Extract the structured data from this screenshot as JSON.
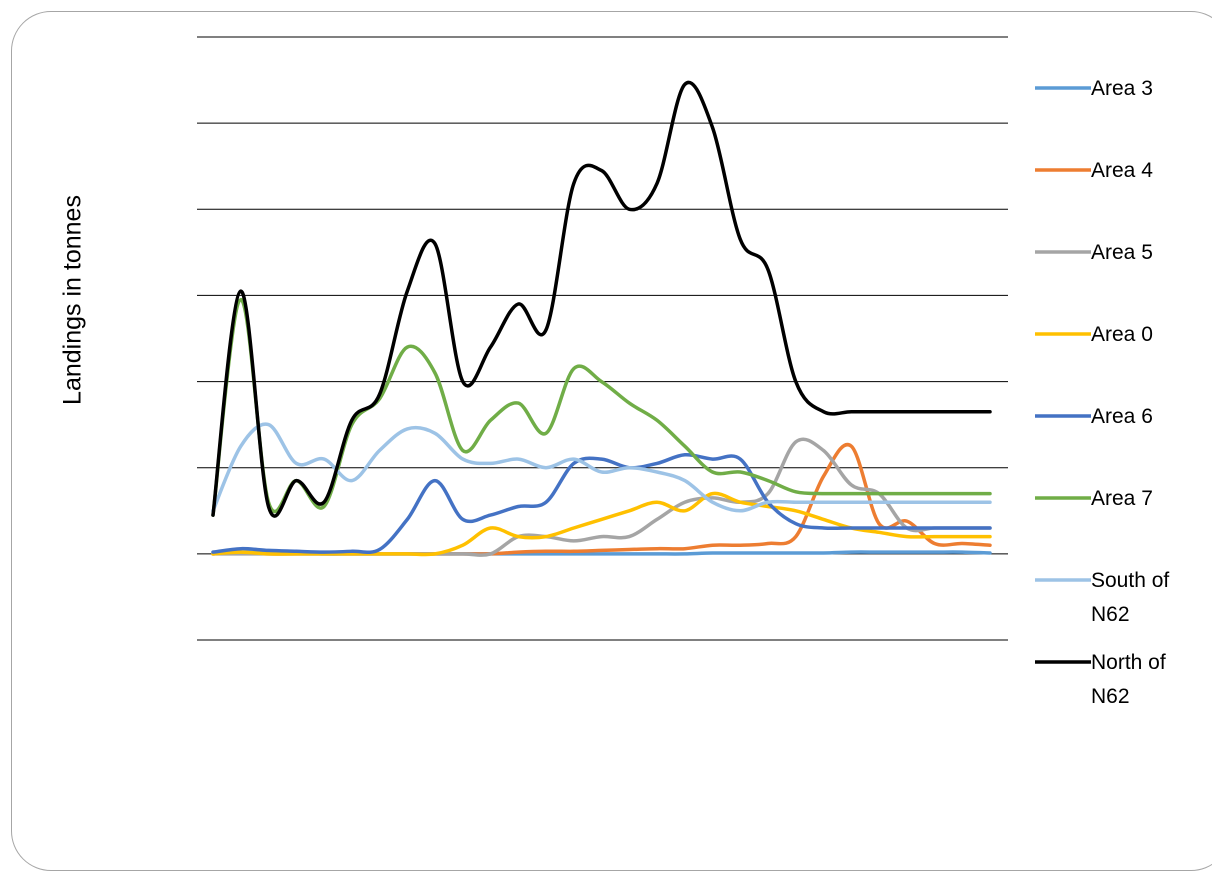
{
  "chart_data": {
    "type": "line",
    "title": "",
    "xlabel": "",
    "ylabel": "Landings in tonnes",
    "ylim": [
      -1,
      6
    ],
    "gridlines": "horizontal",
    "tick_labels_shown": false,
    "legend_position": "right",
    "series": [
      {
        "name": "Area 3",
        "color": "#5b9bd5",
        "values": [
          0.01,
          0.02,
          0.01,
          0.01,
          0.0,
          0.0,
          0.0,
          0.0,
          0.0,
          0.0,
          0.0,
          0.0,
          0.0,
          0.0,
          0.0,
          0.0,
          0.0,
          0.0,
          0.01,
          0.01,
          0.01,
          0.01,
          0.01,
          0.02,
          0.02,
          0.02,
          0.02,
          0.02,
          0.01
        ]
      },
      {
        "name": "Area 4",
        "color": "#ed7d31",
        "values": [
          0.0,
          0.01,
          0.0,
          0.0,
          0.0,
          0.0,
          0.0,
          0.0,
          0.0,
          0.0,
          0.0,
          0.02,
          0.03,
          0.03,
          0.04,
          0.05,
          0.06,
          0.06,
          0.1,
          0.1,
          0.12,
          0.2,
          0.9,
          1.25,
          0.35,
          0.38,
          0.12,
          0.12,
          0.1
        ]
      },
      {
        "name": "Area 5",
        "color": "#a5a5a5",
        "values": [
          0.0,
          0.0,
          0.0,
          0.0,
          0.0,
          0.0,
          0.0,
          0.0,
          0.0,
          0.0,
          0.0,
          0.2,
          0.2,
          0.15,
          0.2,
          0.2,
          0.4,
          0.6,
          0.65,
          0.6,
          0.7,
          1.3,
          1.2,
          0.8,
          0.7,
          0.3,
          0.3,
          0.3,
          0.3
        ]
      },
      {
        "name": "Area 0",
        "color": "#ffc000",
        "values": [
          0.0,
          0.02,
          0.0,
          0.0,
          0.0,
          0.0,
          0.0,
          0.0,
          0.0,
          0.1,
          0.3,
          0.2,
          0.2,
          0.3,
          0.4,
          0.5,
          0.6,
          0.5,
          0.7,
          0.6,
          0.55,
          0.5,
          0.4,
          0.3,
          0.25,
          0.2,
          0.2,
          0.2,
          0.2
        ]
      },
      {
        "name": "Area 6",
        "color": "#4472c4",
        "values": [
          0.02,
          0.06,
          0.04,
          0.03,
          0.02,
          0.03,
          0.05,
          0.4,
          0.85,
          0.4,
          0.45,
          0.55,
          0.6,
          1.05,
          1.1,
          1.0,
          1.05,
          1.15,
          1.1,
          1.1,
          0.6,
          0.35,
          0.3,
          0.3,
          0.3,
          0.3,
          0.3,
          0.3,
          0.3
        ]
      },
      {
        "name": "Area 7",
        "color": "#70ad47",
        "values": [
          0.45,
          2.95,
          0.6,
          0.85,
          0.55,
          1.5,
          1.8,
          2.4,
          2.1,
          1.2,
          1.55,
          1.75,
          1.4,
          2.15,
          2.0,
          1.75,
          1.55,
          1.25,
          0.95,
          0.95,
          0.85,
          0.72,
          0.7,
          0.7,
          0.7,
          0.7,
          0.7,
          0.7,
          0.7
        ]
      },
      {
        "name": "South of N62",
        "color": "#9dc3e6",
        "values": [
          0.5,
          1.25,
          1.5,
          1.05,
          1.1,
          0.85,
          1.2,
          1.45,
          1.4,
          1.1,
          1.05,
          1.1,
          1.0,
          1.1,
          0.95,
          1.0,
          0.95,
          0.85,
          0.6,
          0.5,
          0.6,
          0.6,
          0.6,
          0.6,
          0.6,
          0.6,
          0.6,
          0.6,
          0.6
        ]
      },
      {
        "name": "North of N62",
        "color": "#000000",
        "values": [
          0.45,
          3.05,
          0.55,
          0.85,
          0.6,
          1.55,
          1.85,
          3.05,
          3.6,
          2.0,
          2.4,
          2.9,
          2.6,
          4.3,
          4.45,
          4.0,
          4.3,
          5.45,
          4.95,
          3.65,
          3.3,
          2.0,
          1.65,
          1.65,
          1.65,
          1.65,
          1.65,
          1.65,
          1.65
        ]
      }
    ]
  }
}
